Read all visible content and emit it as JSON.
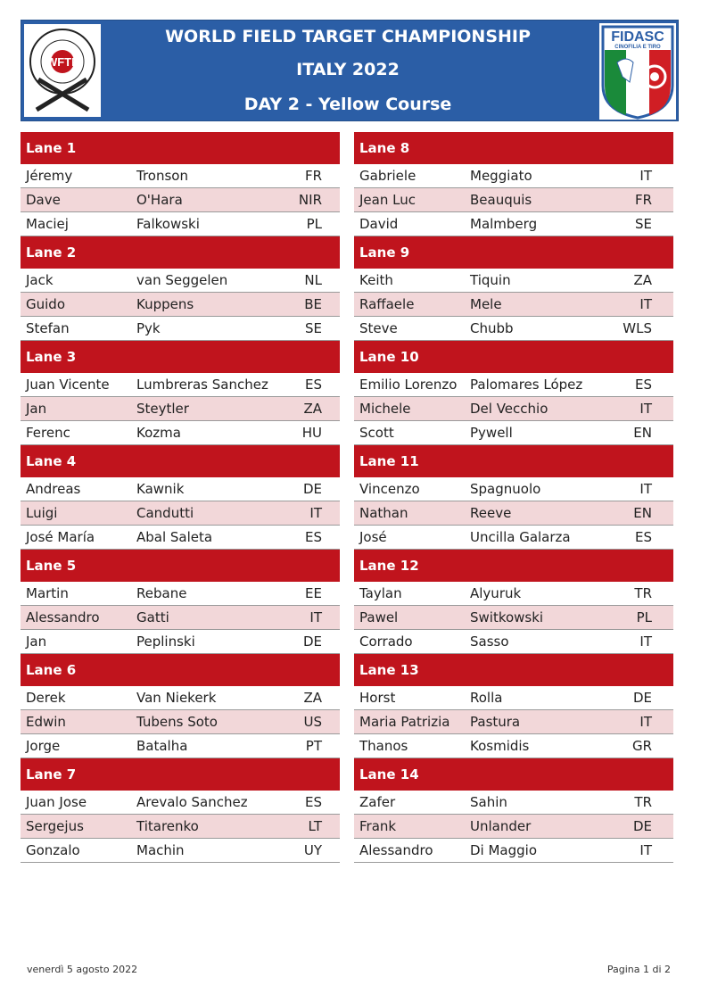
{
  "header": {
    "line1": "WORLD FIELD TARGET CHAMPIONSHIP",
    "line2": "ITALY 2022",
    "line3": "DAY 2 - Yellow Course",
    "left_logo_text": "WFTF",
    "left_logo_ring": "WORLD FIELD TARGET FEDERATION",
    "right_logo_text": "FIDASC",
    "right_logo_sub": "CINOFILIA E TIRO"
  },
  "colors": {
    "banner": "#2b5ea6",
    "lane_header": "#c0141d",
    "alt_row": "#f2d7d9"
  },
  "lanes_left": [
    {
      "label": "Lane  1",
      "rows": [
        [
          "Jéremy",
          "Tronson",
          "FR"
        ],
        [
          "Dave",
          "O'Hara",
          "NIR"
        ],
        [
          "Maciej",
          "Falkowski",
          "PL"
        ]
      ]
    },
    {
      "label": "Lane  2",
      "rows": [
        [
          "Jack",
          "van Seggelen",
          "NL"
        ],
        [
          "Guido",
          "Kuppens",
          "BE"
        ],
        [
          "Stefan",
          "Pyk",
          "SE"
        ]
      ]
    },
    {
      "label": "Lane  3",
      "rows": [
        [
          "Juan Vicente",
          "Lumbreras Sanchez",
          "ES"
        ],
        [
          "Jan",
          "Steytler",
          "ZA"
        ],
        [
          "Ferenc",
          "Kozma",
          "HU"
        ]
      ]
    },
    {
      "label": "Lane  4",
      "rows": [
        [
          "Andreas",
          "Kawnik",
          "DE"
        ],
        [
          "Luigi",
          "Candutti",
          "IT"
        ],
        [
          "José María",
          "Abal Saleta",
          "ES"
        ]
      ]
    },
    {
      "label": "Lane  5",
      "rows": [
        [
          "Martin",
          "Rebane",
          "EE"
        ],
        [
          "Alessandro",
          "Gatti",
          "IT"
        ],
        [
          "Jan",
          "Peplinski",
          "DE"
        ]
      ]
    },
    {
      "label": "Lane  6",
      "rows": [
        [
          "Derek",
          "Van Niekerk",
          "ZA"
        ],
        [
          "Edwin",
          "Tubens Soto",
          "US"
        ],
        [
          "Jorge",
          "Batalha",
          "PT"
        ]
      ]
    },
    {
      "label": "Lane  7",
      "rows": [
        [
          "Juan Jose",
          "Arevalo Sanchez",
          "ES"
        ],
        [
          "Sergejus",
          "Titarenko",
          "LT"
        ],
        [
          "Gonzalo",
          "Machin",
          "UY"
        ]
      ]
    }
  ],
  "lanes_right": [
    {
      "label": "Lane  8",
      "rows": [
        [
          "Gabriele",
          "Meggiato",
          "IT"
        ],
        [
          "Jean Luc",
          "Beauquis",
          "FR"
        ],
        [
          "David",
          "Malmberg",
          "SE"
        ]
      ]
    },
    {
      "label": "Lane  9",
      "rows": [
        [
          "Keith",
          "Tiquin",
          "ZA"
        ],
        [
          "Raffaele",
          "Mele",
          "IT"
        ],
        [
          "Steve",
          "Chubb",
          "WLS"
        ]
      ]
    },
    {
      "label": "Lane  10",
      "rows": [
        [
          "Emilio Lorenzo",
          "Palomares López",
          "ES"
        ],
        [
          "Michele",
          "Del Vecchio",
          "IT"
        ],
        [
          "Scott",
          "Pywell",
          "EN"
        ]
      ]
    },
    {
      "label": "Lane  11",
      "rows": [
        [
          "Vincenzo",
          "Spagnuolo",
          "IT"
        ],
        [
          "Nathan",
          "Reeve",
          "EN"
        ],
        [
          "José",
          "Uncilla Galarza",
          "ES"
        ]
      ]
    },
    {
      "label": "Lane  12",
      "rows": [
        [
          "Taylan",
          "Alyuruk",
          "TR"
        ],
        [
          "Pawel",
          "Switkowski",
          "PL"
        ],
        [
          "Corrado",
          "Sasso",
          "IT"
        ]
      ]
    },
    {
      "label": "Lane  13",
      "rows": [
        [
          "Horst",
          "Rolla",
          "DE"
        ],
        [
          "Maria Patrizia",
          "Pastura",
          "IT"
        ],
        [
          "Thanos",
          "Kosmidis",
          "GR"
        ]
      ]
    },
    {
      "label": "Lane  14",
      "rows": [
        [
          "Zafer",
          "Sahin",
          "TR"
        ],
        [
          "Frank",
          "Unlander",
          "DE"
        ],
        [
          "Alessandro",
          "Di Maggio",
          "IT"
        ]
      ]
    }
  ],
  "footer": {
    "date": "venerdì 5 agosto 2022",
    "page": "Pagina 1 di 2"
  }
}
